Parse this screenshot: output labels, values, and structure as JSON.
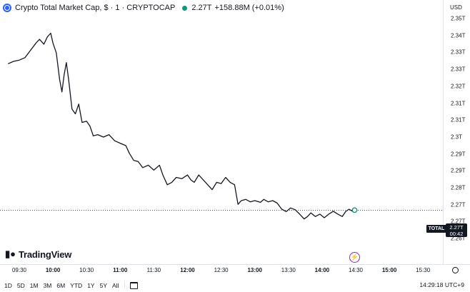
{
  "header": {
    "title": "Crypto Total Market Cap, $ · 1 · CRYPTOCAP",
    "price": "2.27T",
    "change": "+158.88M (+0.01%)"
  },
  "price_axis": {
    "currency": "USD",
    "ticks": [
      "2.35T",
      "2.34T",
      "2.33T",
      "2.33T",
      "2.32T",
      "2.31T",
      "2.31T",
      "2.3T",
      "2.29T",
      "2.29T",
      "2.28T",
      "2.27T",
      "2.27T",
      "2.26T"
    ],
    "last_price": "2.27T",
    "countdown": "00:42",
    "symbol_tag": "TOTAL"
  },
  "time_axis": {
    "labels": [
      {
        "text": "09:30",
        "bold": false
      },
      {
        "text": "10:00",
        "bold": true
      },
      {
        "text": "10:30",
        "bold": false
      },
      {
        "text": "11:00",
        "bold": true
      },
      {
        "text": "11:30",
        "bold": false
      },
      {
        "text": "12:00",
        "bold": true
      },
      {
        "text": "12:30",
        "bold": false
      },
      {
        "text": "13:00",
        "bold": true
      },
      {
        "text": "13:30",
        "bold": false
      },
      {
        "text": "14:00",
        "bold": true
      },
      {
        "text": "14:30",
        "bold": false
      },
      {
        "text": "15:00",
        "bold": true
      },
      {
        "text": "15:30",
        "bold": false
      }
    ]
  },
  "logo": {
    "name": "TradingView"
  },
  "bottom_bar": {
    "ranges": [
      "1D",
      "5D",
      "1M",
      "3M",
      "6M",
      "YTD",
      "1Y",
      "5Y",
      "All"
    ],
    "clock": "14:29:18 UTC+9"
  },
  "colors": {
    "line": "#131722",
    "accent": "#2962ff",
    "last_dot": "#089981"
  },
  "chart_data": {
    "type": "line",
    "x_range": [
      "09:20",
      "15:45"
    ],
    "y_range": [
      2.26,
      2.35
    ],
    "series": [
      {
        "values": [
          [
            "09:20",
            2.3315
          ],
          [
            "09:25",
            2.3325
          ],
          [
            "09:30",
            2.333
          ],
          [
            "09:35",
            2.334
          ],
          [
            "09:40",
            2.337
          ],
          [
            "09:45",
            2.34
          ],
          [
            "09:48",
            2.3415
          ],
          [
            "09:52",
            2.3395
          ],
          [
            "09:55",
            2.3425
          ],
          [
            "09:58",
            2.344
          ],
          [
            "10:00",
            2.34
          ],
          [
            "10:03",
            2.336
          ],
          [
            "10:06",
            2.325
          ],
          [
            "10:08",
            2.32
          ],
          [
            "10:10",
            2.327
          ],
          [
            "10:12",
            2.332
          ],
          [
            "10:14",
            2.325
          ],
          [
            "10:17",
            2.313
          ],
          [
            "10:20",
            2.311
          ],
          [
            "10:23",
            2.315
          ],
          [
            "10:26",
            2.3075
          ],
          [
            "10:30",
            2.308
          ],
          [
            "10:33",
            2.306
          ],
          [
            "10:36",
            2.302
          ],
          [
            "10:40",
            2.3025
          ],
          [
            "10:45",
            2.3015
          ],
          [
            "10:50",
            2.3025
          ],
          [
            "10:55",
            2.3
          ],
          [
            "11:00",
            2.299
          ],
          [
            "11:05",
            2.298
          ],
          [
            "11:08",
            2.295
          ],
          [
            "11:12",
            2.292
          ],
          [
            "11:16",
            2.2915
          ],
          [
            "11:20",
            2.289
          ],
          [
            "11:25",
            2.29
          ],
          [
            "11:30",
            2.288
          ],
          [
            "11:35",
            2.29
          ],
          [
            "11:38",
            2.286
          ],
          [
            "11:42",
            2.282
          ],
          [
            "11:46",
            2.283
          ],
          [
            "11:50",
            2.285
          ],
          [
            "11:55",
            2.2845
          ],
          [
            "12:00",
            2.286
          ],
          [
            "12:03",
            2.284
          ],
          [
            "12:06",
            2.283
          ],
          [
            "12:10",
            2.286
          ],
          [
            "12:14",
            2.284
          ],
          [
            "12:18",
            2.282
          ],
          [
            "12:22",
            2.28
          ],
          [
            "12:26",
            2.283
          ],
          [
            "12:30",
            2.2825
          ],
          [
            "12:34",
            2.285
          ],
          [
            "12:38",
            2.283
          ],
          [
            "12:42",
            2.282
          ],
          [
            "12:45",
            2.274
          ],
          [
            "12:48",
            2.2755
          ],
          [
            "12:52",
            2.276
          ],
          [
            "12:56",
            2.275
          ],
          [
            "13:00",
            2.2755
          ],
          [
            "13:05",
            2.2748
          ],
          [
            "13:08",
            2.276
          ],
          [
            "13:12",
            2.275
          ],
          [
            "13:16",
            2.2755
          ],
          [
            "13:20",
            2.2745
          ],
          [
            "13:24",
            2.272
          ],
          [
            "13:28",
            2.271
          ],
          [
            "13:32",
            2.2725
          ],
          [
            "13:36",
            2.2718
          ],
          [
            "13:40",
            2.27
          ],
          [
            "13:44",
            2.268
          ],
          [
            "13:47",
            2.269
          ],
          [
            "13:50",
            2.2705
          ],
          [
            "13:54",
            2.269
          ],
          [
            "13:58",
            2.27
          ],
          [
            "14:02",
            2.2685
          ],
          [
            "14:06",
            2.27
          ],
          [
            "14:10",
            2.2712
          ],
          [
            "14:14",
            2.27
          ],
          [
            "14:18",
            2.269
          ],
          [
            "14:21",
            2.271
          ],
          [
            "14:24",
            2.272
          ],
          [
            "14:27",
            2.2712
          ],
          [
            "14:29",
            2.2716
          ]
        ]
      }
    ]
  }
}
